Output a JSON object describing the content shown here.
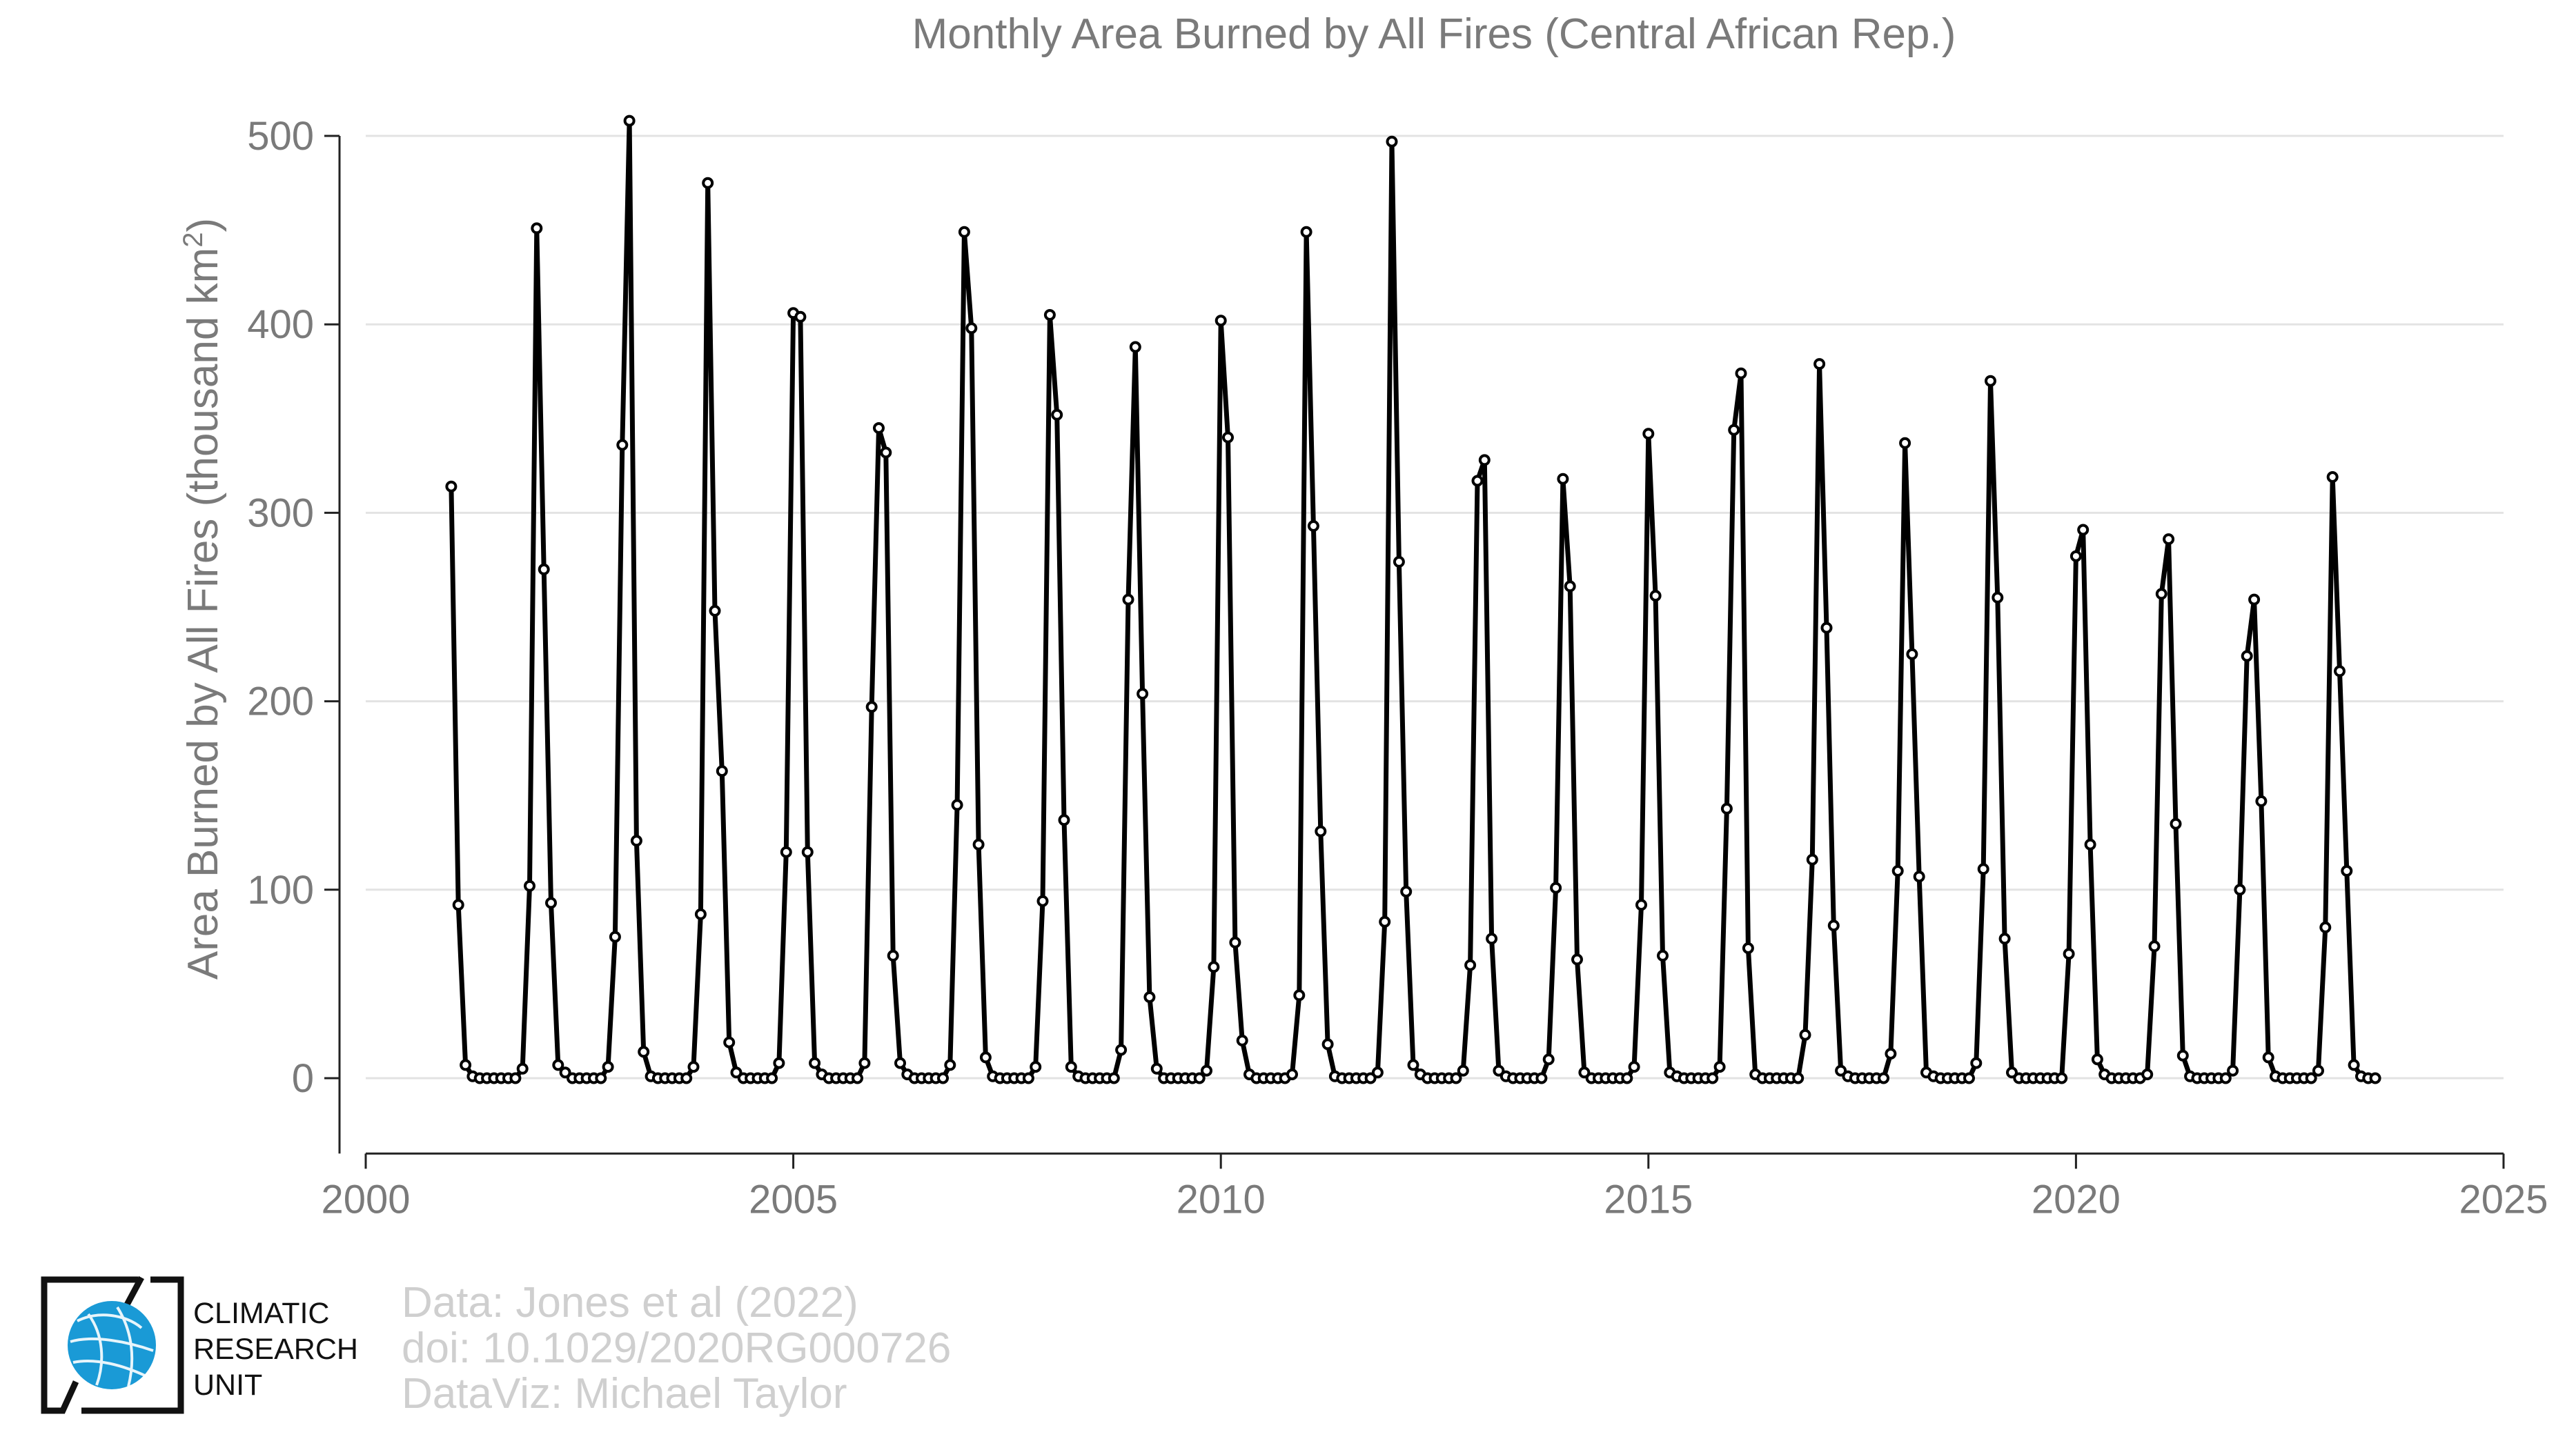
{
  "chart_data": {
    "type": "line",
    "title": "Monthly Area Burned by All Fires (Central African Rep.)",
    "ylabel_main": "Area Burned by All Fires (thousand km",
    "ylabel_sup": "2",
    "ylabel_close": ")",
    "xlim": [
      2000,
      2025
    ],
    "ylim": [
      -40,
      510
    ],
    "x_ticks": [
      "2000",
      "2005",
      "2010",
      "2015",
      "2020",
      "2025"
    ],
    "y_ticks": [
      "0",
      "100",
      "200",
      "300",
      "400",
      "500"
    ],
    "grid": true,
    "start_year": 2001,
    "start_month": 1,
    "values": [
      314,
      92,
      7,
      1,
      0,
      0,
      0,
      0,
      0,
      0,
      5,
      102,
      451,
      270,
      93,
      7,
      3,
      0,
      0,
      0,
      0,
      0,
      6,
      75,
      336,
      508,
      126,
      14,
      1,
      0,
      0,
      0,
      0,
      0,
      6,
      87,
      475,
      248,
      163,
      19,
      3,
      0,
      0,
      0,
      0,
      0,
      8,
      120,
      406,
      404,
      120,
      8,
      2,
      0,
      0,
      0,
      0,
      0,
      8,
      197,
      345,
      332,
      65,
      8,
      2,
      0,
      0,
      0,
      0,
      0,
      7,
      145,
      449,
      398,
      124,
      11,
      1,
      0,
      0,
      0,
      0,
      0,
      6,
      94,
      405,
      352,
      137,
      6,
      1,
      0,
      0,
      0,
      0,
      0,
      15,
      254,
      388,
      204,
      43,
      5,
      0,
      0,
      0,
      0,
      0,
      0,
      4,
      59,
      402,
      340,
      72,
      20,
      2,
      0,
      0,
      0,
      0,
      0,
      2,
      44,
      449,
      293,
      131,
      18,
      1,
      0,
      0,
      0,
      0,
      0,
      3,
      83,
      497,
      274,
      99,
      7,
      2,
      0,
      0,
      0,
      0,
      0,
      4,
      60,
      317,
      328,
      74,
      4,
      1,
      0,
      0,
      0,
      0,
      0,
      10,
      101,
      318,
      261,
      63,
      3,
      0,
      0,
      0,
      0,
      0,
      0,
      6,
      92,
      342,
      256,
      65,
      3,
      1,
      0,
      0,
      0,
      0,
      0,
      6,
      143,
      344,
      374,
      69,
      2,
      0,
      0,
      0,
      0,
      0,
      0,
      23,
      116,
      379,
      239,
      81,
      4,
      1,
      0,
      0,
      0,
      0,
      0,
      13,
      110,
      337,
      225,
      107,
      3,
      1,
      0,
      0,
      0,
      0,
      0,
      8,
      111,
      370,
      255,
      74,
      3,
      0,
      0,
      0,
      0,
      0,
      0,
      0,
      66,
      277,
      291,
      124,
      10,
      2,
      0,
      0,
      0,
      0,
      0,
      2,
      70,
      257,
      286,
      135,
      12,
      1,
      0,
      0,
      0,
      0,
      0,
      4,
      100,
      224,
      254,
      147,
      11,
      1,
      0,
      0,
      0,
      0,
      0,
      4,
      80,
      319,
      216,
      110,
      7,
      1,
      0,
      0
    ]
  },
  "credits": {
    "line1": "Data: Jones et al (2022)",
    "line2": "doi: 10.1029/2020RG000726",
    "line3": "DataViz: Michael Taylor"
  },
  "logo": {
    "line1": "CLIMATIC",
    "line2": "RESEARCH",
    "line3": "UNIT",
    "accent": "#1a9ad6"
  },
  "colors": {
    "line": "#000000",
    "marker_fill": "#ffffff",
    "grid": "#e3e3e3",
    "text": "#7a7a7a",
    "credit_text": "#cfcfcf"
  }
}
